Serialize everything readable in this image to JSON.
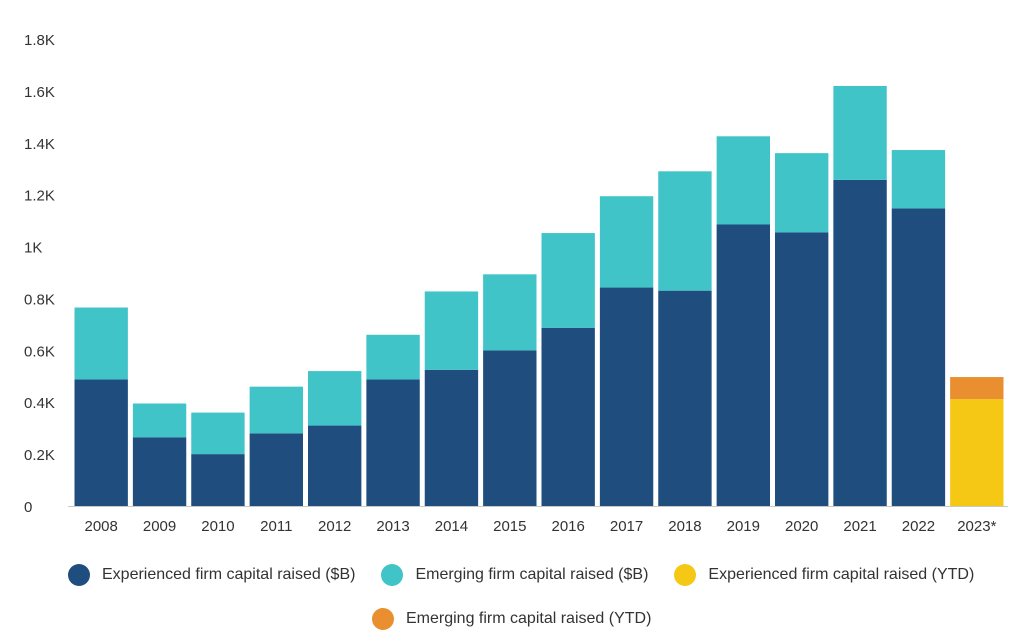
{
  "chart_data": {
    "type": "bar",
    "stacked": true,
    "categories": [
      "2008",
      "2009",
      "2010",
      "2011",
      "2012",
      "2013",
      "2014",
      "2015",
      "2016",
      "2017",
      "2018",
      "2019",
      "2020",
      "2021",
      "2022",
      "2023*"
    ],
    "series": [
      {
        "name": "Experienced firm capital raised ($B)",
        "color": "#1f4e7e",
        "values": [
          488,
          265,
          200,
          280,
          310,
          488,
          525,
          600,
          687,
          842,
          830,
          1085,
          1055,
          1257,
          1147,
          null
        ]
      },
      {
        "name": "Emerging firm capital raised ($B)",
        "color": "#40c4c8",
        "values": [
          277,
          130,
          160,
          180,
          210,
          172,
          302,
          293,
          365,
          352,
          460,
          340,
          305,
          362,
          225,
          null
        ]
      },
      {
        "name": "Experienced firm capital raised (YTD)",
        "color": "#f5c815",
        "values": [
          null,
          null,
          null,
          null,
          null,
          null,
          null,
          null,
          null,
          null,
          null,
          null,
          null,
          null,
          null,
          412
        ]
      },
      {
        "name": "Emerging firm capital raised (YTD)",
        "color": "#ea8f2f",
        "values": [
          null,
          null,
          null,
          null,
          null,
          null,
          null,
          null,
          null,
          null,
          null,
          null,
          null,
          null,
          null,
          85
        ]
      }
    ],
    "ylim": [
      0,
      1800
    ],
    "yticks": [
      0,
      200,
      400,
      600,
      800,
      1000,
      1200,
      1400,
      1600,
      1800
    ],
    "ytick_labels": [
      "0",
      "0.2K",
      "0.4K",
      "0.6K",
      "0.8K",
      "1K",
      "1.2K",
      "1.4K",
      "1.6K",
      "1.8K"
    ],
    "grid": false,
    "legend_position": "bottom"
  }
}
